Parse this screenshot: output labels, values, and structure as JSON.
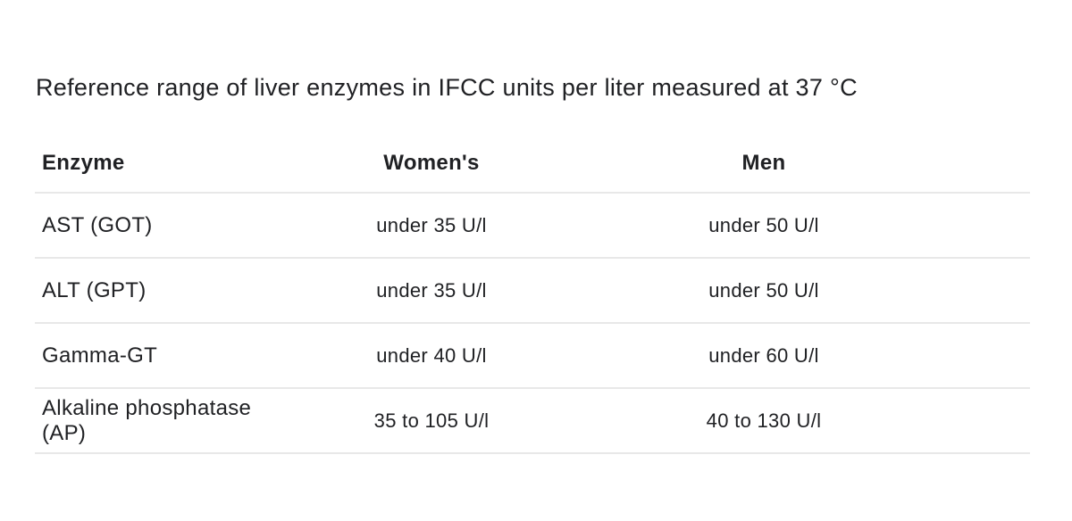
{
  "page": {
    "title": "Reference range of liver enzymes in IFCC units per liter measured at 37 °C"
  },
  "table": {
    "columns": [
      "Enzyme",
      "Women's",
      "Men"
    ],
    "rows": [
      {
        "enzyme": "AST (GOT)",
        "women": "under 35 U/l",
        "men": "under 50 U/l"
      },
      {
        "enzyme": "ALT (GPT)",
        "women": "under 35 U/l",
        "men": "under 50 U/l"
      },
      {
        "enzyme": "Gamma-GT",
        "women": "under 40 U/l",
        "men": "under 60 U/l"
      },
      {
        "enzyme": "Alkaline phosphatase (AP)",
        "women": "35 to 105 U/l",
        "men": "40 to 130 U/l"
      }
    ]
  },
  "colors": {
    "background": "#ffffff",
    "text": "#202124",
    "divider": "#e8e8e8"
  }
}
